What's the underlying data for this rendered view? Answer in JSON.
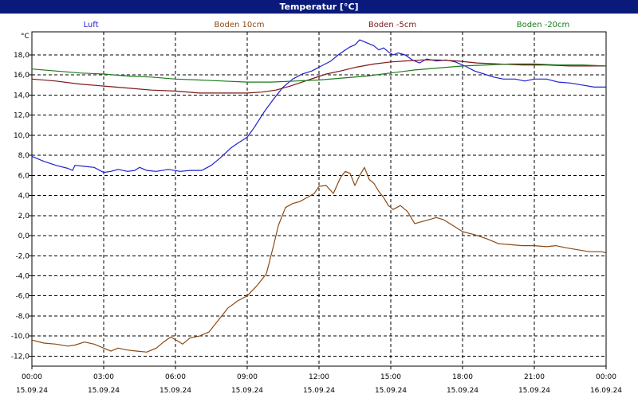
{
  "window": {
    "title": "Temperatur [°C]"
  },
  "colors": {
    "title_bar": "#0a1a7a",
    "luft": "#1f1fd0",
    "boden_10cm": "#8b4a14",
    "boden_5cm": "#7a1818",
    "boden_20cm": "#1c7a1c",
    "grid": "#000000"
  },
  "legend": [
    {
      "label": "Luft",
      "color": "#1f1fd0"
    },
    {
      "label": "Boden 10cm",
      "color": "#8b4a14"
    },
    {
      "label": "Boden -5cm",
      "color": "#7a1818"
    },
    {
      "label": "Boden -20cm",
      "color": "#1c7a1c"
    }
  ],
  "chart_data": {
    "type": "line",
    "title": "Temperatur [°C]",
    "ylabel": "°C",
    "xlabel": "",
    "ylim": [
      -13,
      20.3
    ],
    "xlim": [
      0,
      24
    ],
    "grid": true,
    "legend_position": "top",
    "y_ticks": [
      {
        "value": 18,
        "label": "18,0"
      },
      {
        "value": 16,
        "label": "16,0"
      },
      {
        "value": 14,
        "label": "14,0"
      },
      {
        "value": 12,
        "label": "12,0"
      },
      {
        "value": 10,
        "label": "10,0"
      },
      {
        "value": 8,
        "label": "8,0"
      },
      {
        "value": 6,
        "label": "6,0"
      },
      {
        "value": 4,
        "label": "4,0"
      },
      {
        "value": 2,
        "label": "2,0"
      },
      {
        "value": 0,
        "label": "0,0"
      },
      {
        "value": -2,
        "label": "-2,0"
      },
      {
        "value": -4,
        "label": "-4,0"
      },
      {
        "value": -6,
        "label": "-6,0"
      },
      {
        "value": -8,
        "label": "-8,0"
      },
      {
        "value": -10,
        "label": "-10,0"
      },
      {
        "value": -12,
        "label": "-12,0"
      }
    ],
    "x_ticks": [
      {
        "value": 0,
        "time": "00:00",
        "date": "15.09.24"
      },
      {
        "value": 3,
        "time": "03:00",
        "date": "15.09.24"
      },
      {
        "value": 6,
        "time": "06:00",
        "date": "15.09.24"
      },
      {
        "value": 9,
        "time": "09:00",
        "date": "15.09.24"
      },
      {
        "value": 12,
        "time": "12:00",
        "date": "15.09.24"
      },
      {
        "value": 15,
        "time": "15:00",
        "date": "15.09.24"
      },
      {
        "value": 18,
        "time": "18:00",
        "date": "15.09.24"
      },
      {
        "value": 21,
        "time": "21:00",
        "date": "15.09.24"
      },
      {
        "value": 24,
        "time": "00:00",
        "date": "16.09.24"
      }
    ],
    "x_unit": "hours",
    "series": [
      {
        "name": "Luft",
        "color": "#1f1fd0",
        "points": [
          [
            0,
            7.9
          ],
          [
            0.5,
            7.4
          ],
          [
            1.0,
            7.0
          ],
          [
            1.5,
            6.7
          ],
          [
            1.7,
            6.5
          ],
          [
            1.8,
            7.0
          ],
          [
            2.2,
            6.9
          ],
          [
            2.6,
            6.8
          ],
          [
            3.0,
            6.3
          ],
          [
            3.3,
            6.4
          ],
          [
            3.6,
            6.6
          ],
          [
            4.0,
            6.4
          ],
          [
            4.3,
            6.5
          ],
          [
            4.5,
            6.8
          ],
          [
            4.8,
            6.5
          ],
          [
            5.2,
            6.4
          ],
          [
            5.7,
            6.6
          ],
          [
            6.2,
            6.4
          ],
          [
            6.6,
            6.5
          ],
          [
            7.1,
            6.5
          ],
          [
            7.5,
            7.0
          ],
          [
            7.9,
            7.8
          ],
          [
            8.3,
            8.7
          ],
          [
            8.6,
            9.2
          ],
          [
            9.0,
            9.8
          ],
          [
            9.3,
            10.8
          ],
          [
            9.7,
            12.3
          ],
          [
            10.1,
            13.6
          ],
          [
            10.5,
            14.8
          ],
          [
            10.9,
            15.6
          ],
          [
            11.3,
            16.1
          ],
          [
            11.7,
            16.4
          ],
          [
            12.1,
            16.9
          ],
          [
            12.5,
            17.4
          ],
          [
            12.8,
            18.0
          ],
          [
            13.1,
            18.5
          ],
          [
            13.3,
            18.8
          ],
          [
            13.5,
            19.0
          ],
          [
            13.7,
            19.5
          ],
          [
            13.9,
            19.3
          ],
          [
            14.1,
            19.1
          ],
          [
            14.3,
            18.9
          ],
          [
            14.5,
            18.5
          ],
          [
            14.7,
            18.7
          ],
          [
            14.9,
            18.3
          ],
          [
            15.1,
            18.0
          ],
          [
            15.3,
            18.2
          ],
          [
            15.6,
            18.0
          ],
          [
            15.9,
            17.5
          ],
          [
            16.2,
            17.2
          ],
          [
            16.5,
            17.6
          ],
          [
            16.9,
            17.4
          ],
          [
            17.3,
            17.5
          ],
          [
            17.7,
            17.3
          ],
          [
            18.1,
            16.9
          ],
          [
            18.5,
            16.4
          ],
          [
            18.9,
            16.1
          ],
          [
            19.3,
            15.8
          ],
          [
            19.7,
            15.6
          ],
          [
            20.2,
            15.6
          ],
          [
            20.6,
            15.4
          ],
          [
            21.0,
            15.6
          ],
          [
            21.5,
            15.6
          ],
          [
            22.0,
            15.3
          ],
          [
            22.5,
            15.2
          ],
          [
            23.0,
            15.0
          ],
          [
            23.5,
            14.8
          ],
          [
            24.0,
            14.8
          ]
        ]
      },
      {
        "name": "Boden 10cm",
        "color": "#8b4a14",
        "points": [
          [
            0,
            -10.4
          ],
          [
            0.5,
            -10.7
          ],
          [
            1.0,
            -10.8
          ],
          [
            1.5,
            -11.0
          ],
          [
            1.8,
            -10.9
          ],
          [
            2.2,
            -10.6
          ],
          [
            2.6,
            -10.8
          ],
          [
            3.0,
            -11.2
          ],
          [
            3.3,
            -11.5
          ],
          [
            3.6,
            -11.2
          ],
          [
            4.0,
            -11.4
          ],
          [
            4.4,
            -11.5
          ],
          [
            4.8,
            -11.6
          ],
          [
            5.2,
            -11.2
          ],
          [
            5.5,
            -10.6
          ],
          [
            5.8,
            -10.1
          ],
          [
            6.1,
            -10.5
          ],
          [
            6.3,
            -10.8
          ],
          [
            6.6,
            -10.2
          ],
          [
            7.0,
            -10.0
          ],
          [
            7.4,
            -9.6
          ],
          [
            7.8,
            -8.4
          ],
          [
            8.2,
            -7.2
          ],
          [
            8.6,
            -6.5
          ],
          [
            9.0,
            -6.0
          ],
          [
            9.4,
            -5.0
          ],
          [
            9.8,
            -3.8
          ],
          [
            10.1,
            -1.0
          ],
          [
            10.3,
            1.0
          ],
          [
            10.6,
            2.8
          ],
          [
            10.9,
            3.2
          ],
          [
            11.2,
            3.4
          ],
          [
            11.5,
            3.8
          ],
          [
            11.8,
            4.2
          ],
          [
            12.0,
            4.9
          ],
          [
            12.3,
            5.0
          ],
          [
            12.6,
            4.2
          ],
          [
            12.9,
            5.8
          ],
          [
            13.1,
            6.4
          ],
          [
            13.3,
            6.2
          ],
          [
            13.5,
            5.0
          ],
          [
            13.7,
            6.0
          ],
          [
            13.9,
            6.8
          ],
          [
            14.1,
            5.6
          ],
          [
            14.3,
            5.2
          ],
          [
            14.5,
            4.4
          ],
          [
            14.7,
            3.8
          ],
          [
            14.9,
            3.0
          ],
          [
            15.1,
            2.6
          ],
          [
            15.4,
            3.0
          ],
          [
            15.7,
            2.4
          ],
          [
            16.0,
            1.2
          ],
          [
            16.3,
            1.4
          ],
          [
            16.6,
            1.6
          ],
          [
            16.9,
            1.8
          ],
          [
            17.2,
            1.6
          ],
          [
            17.6,
            1.0
          ],
          [
            18.0,
            0.4
          ],
          [
            18.5,
            0.1
          ],
          [
            19.0,
            -0.3
          ],
          [
            19.5,
            -0.8
          ],
          [
            20.0,
            -0.9
          ],
          [
            20.5,
            -1.0
          ],
          [
            21.0,
            -1.0
          ],
          [
            21.5,
            -1.1
          ],
          [
            21.9,
            -1.0
          ],
          [
            22.3,
            -1.2
          ],
          [
            22.8,
            -1.4
          ],
          [
            23.3,
            -1.6
          ],
          [
            23.8,
            -1.6
          ],
          [
            24.0,
            -1.7
          ]
        ]
      },
      {
        "name": "Boden -5cm",
        "color": "#7a1818",
        "points": [
          [
            0,
            15.6
          ],
          [
            1.0,
            15.4
          ],
          [
            2.0,
            15.1
          ],
          [
            3.0,
            14.9
          ],
          [
            4.0,
            14.7
          ],
          [
            5.0,
            14.5
          ],
          [
            6.0,
            14.4
          ],
          [
            7.0,
            14.2
          ],
          [
            8.0,
            14.2
          ],
          [
            9.0,
            14.2
          ],
          [
            9.6,
            14.3
          ],
          [
            10.2,
            14.5
          ],
          [
            10.8,
            14.9
          ],
          [
            11.3,
            15.3
          ],
          [
            11.8,
            15.7
          ],
          [
            12.3,
            16.1
          ],
          [
            12.9,
            16.4
          ],
          [
            13.6,
            16.8
          ],
          [
            14.3,
            17.1
          ],
          [
            15.0,
            17.3
          ],
          [
            15.6,
            17.4
          ],
          [
            16.3,
            17.5
          ],
          [
            17.0,
            17.5
          ],
          [
            17.8,
            17.4
          ],
          [
            18.6,
            17.2
          ],
          [
            19.5,
            17.1
          ],
          [
            20.5,
            17.0
          ],
          [
            21.5,
            17.0
          ],
          [
            22.5,
            16.9
          ],
          [
            23.3,
            16.9
          ],
          [
            24.0,
            16.9
          ]
        ]
      },
      {
        "name": "Boden -20cm",
        "color": "#1c7a1c",
        "points": [
          [
            0,
            16.6
          ],
          [
            1.0,
            16.4
          ],
          [
            2.0,
            16.2
          ],
          [
            3.0,
            16.1
          ],
          [
            4.0,
            15.9
          ],
          [
            5.0,
            15.8
          ],
          [
            6.0,
            15.6
          ],
          [
            7.0,
            15.5
          ],
          [
            8.0,
            15.4
          ],
          [
            9.0,
            15.3
          ],
          [
            10.0,
            15.3
          ],
          [
            11.0,
            15.4
          ],
          [
            12.0,
            15.5
          ],
          [
            13.0,
            15.7
          ],
          [
            14.0,
            15.9
          ],
          [
            15.0,
            16.2
          ],
          [
            16.0,
            16.5
          ],
          [
            17.0,
            16.7
          ],
          [
            18.0,
            16.9
          ],
          [
            19.0,
            17.0
          ],
          [
            20.0,
            17.1
          ],
          [
            21.0,
            17.1
          ],
          [
            22.0,
            17.0
          ],
          [
            23.0,
            17.0
          ],
          [
            24.0,
            16.9
          ]
        ]
      }
    ]
  }
}
